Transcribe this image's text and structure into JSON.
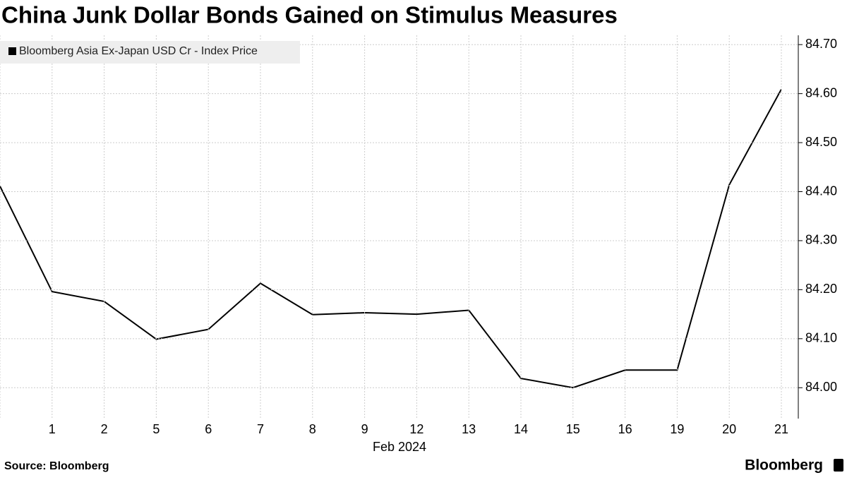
{
  "chart_data": {
    "type": "line",
    "title": "China Junk Dollar Bonds Gained on Stimulus Measures",
    "x_label": "Feb 2024",
    "source": "Source: Bloomberg",
    "brand": "Bloomberg",
    "categories": [
      null,
      "1",
      "2",
      "5",
      "6",
      "7",
      "8",
      "9",
      "12",
      "13",
      "14",
      "15",
      "16",
      "19",
      "20",
      "21"
    ],
    "series": [
      {
        "name": "Bloomberg Asia Ex-Japan USD Cr - Index Price",
        "color": "#000000",
        "values": [
          84.411,
          84.196,
          84.176,
          84.099,
          84.119,
          84.213,
          84.149,
          84.153,
          84.15,
          84.158,
          84.019,
          84.0,
          84.036,
          84.036,
          84.414,
          84.609
        ]
      }
    ],
    "ylim": [
      83.937,
      84.719
    ],
    "yticks": [
      {
        "value": 84.0,
        "label": "84.00"
      },
      {
        "value": 84.1,
        "label": "84.10"
      },
      {
        "value": 84.2,
        "label": "84.20"
      },
      {
        "value": 84.3,
        "label": "84.30"
      },
      {
        "value": 84.4,
        "label": "84.40"
      },
      {
        "value": 84.5,
        "label": "84.50"
      },
      {
        "value": 84.6,
        "label": "84.60"
      },
      {
        "value": 84.7,
        "label": "84.70"
      }
    ],
    "grid": true
  }
}
